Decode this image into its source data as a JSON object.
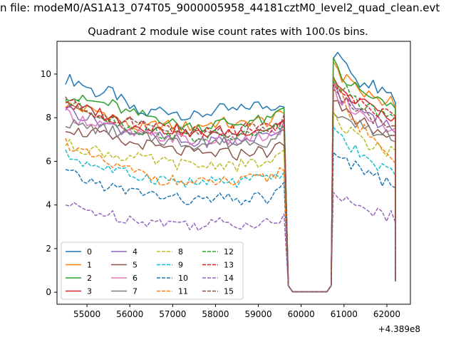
{
  "chart_data": {
    "type": "line",
    "suptitle": "n file: modeM0/AS1A13_074T05_9000005958_44181cztM0_level2_quad_clean.evt",
    "title": "Quadrant 2 module wise count rates with 100.0s bins.",
    "xlabel": "",
    "ylabel": "",
    "x_offset_label": "+4.389e8",
    "x_ticks": [
      55000,
      56000,
      57000,
      58000,
      59000,
      60000,
      61000,
      62000
    ],
    "y_ticks": [
      0,
      2,
      4,
      6,
      8,
      10
    ],
    "xlim": [
      54300,
      62550
    ],
    "ylim": [
      -0.55,
      11.5
    ],
    "grid": false,
    "legend_position": "lower-left",
    "legend_columns": 4,
    "colors": [
      "#1f77b4",
      "#ff7f0e",
      "#2ca02c",
      "#d62728",
      "#9467bd",
      "#8c564b",
      "#e377c2",
      "#7f7f7f",
      "#bcbd22",
      "#17becf",
      "#1f77b4",
      "#ff7f0e",
      "#2ca02c",
      "#d62728",
      "#9467bd",
      "#8c564b"
    ],
    "segments": [
      [
        54500,
        59600
      ],
      [
        60750,
        62200
      ]
    ],
    "gap": {
      "x": [
        59700,
        59800,
        60600,
        60700
      ],
      "y": [
        0.3,
        0.02,
        0.02,
        0.3
      ],
      "end_value": 0.5
    },
    "series": [
      {
        "name": "0",
        "style": "solid",
        "seg1": [
          9.8,
          9.6,
          9.1,
          9.2,
          8.5,
          8.1,
          8.4,
          8.3,
          8.0,
          8.2,
          8.4,
          8.3,
          8.6,
          8.5,
          8.7
        ],
        "seg2": [
          10.8,
          10.6,
          10.0,
          9.7,
          9.6,
          9.3,
          9.0,
          8.9
        ]
      },
      {
        "name": "1",
        "style": "solid",
        "seg1": [
          8.6,
          8.4,
          8.3,
          8.1,
          7.6,
          7.5,
          7.7,
          7.6,
          7.6,
          7.7,
          7.8,
          7.6,
          7.9,
          7.8,
          8.2
        ],
        "seg2": [
          10.4,
          9.8,
          9.6,
          9.3,
          9.0,
          8.9,
          8.8,
          8.7
        ]
      },
      {
        "name": "2",
        "style": "solid",
        "seg1": [
          9.1,
          8.8,
          8.7,
          8.6,
          8.2,
          8.1,
          8.0,
          7.7,
          7.6,
          7.6,
          7.8,
          7.7,
          7.9,
          7.8,
          8.5
        ],
        "seg2": [
          10.7,
          9.9,
          9.5,
          9.2,
          9.0,
          8.8,
          8.6,
          8.6
        ]
      },
      {
        "name": "3",
        "style": "solid",
        "seg1": [
          8.6,
          8.4,
          8.3,
          8.0,
          7.6,
          7.6,
          7.4,
          7.5,
          7.2,
          7.3,
          7.4,
          7.3,
          7.5,
          7.5,
          7.9
        ],
        "seg2": [
          9.8,
          9.2,
          8.9,
          8.7,
          8.5,
          8.3,
          8.2,
          8.0
        ]
      },
      {
        "name": "4",
        "style": "solid",
        "seg1": [
          8.5,
          8.1,
          7.9,
          7.6,
          7.4,
          7.3,
          7.1,
          7.0,
          6.8,
          6.9,
          7.0,
          6.9,
          7.1,
          7.2,
          7.7
        ],
        "seg2": [
          9.6,
          8.9,
          8.5,
          8.3,
          8.0,
          7.8,
          7.7,
          7.5
        ]
      },
      {
        "name": "5",
        "style": "solid",
        "seg1": [
          7.6,
          7.3,
          7.3,
          7.0,
          6.8,
          6.8,
          6.6,
          6.5,
          6.4,
          6.3,
          6.4,
          6.3,
          6.5,
          6.4,
          6.8
        ],
        "seg2": [
          8.9,
          8.3,
          8.0,
          7.8,
          7.6,
          7.4,
          7.2,
          7.0
        ]
      },
      {
        "name": "6",
        "style": "solid",
        "seg1": [
          8.2,
          7.9,
          7.8,
          7.6,
          7.3,
          7.2,
          7.1,
          7.1,
          6.9,
          7.0,
          7.0,
          6.9,
          7.1,
          7.1,
          7.5
        ],
        "seg2": [
          9.4,
          8.8,
          8.5,
          8.2,
          8.0,
          7.8,
          7.6,
          7.4
        ]
      },
      {
        "name": "7",
        "style": "solid",
        "seg1": [
          7.8,
          7.6,
          7.5,
          7.4,
          7.2,
          7.1,
          7.0,
          6.9,
          6.8,
          6.8,
          6.9,
          6.8,
          7.0,
          6.9,
          7.3
        ],
        "seg2": [
          8.4,
          8.0,
          7.8,
          7.6,
          7.4,
          7.3,
          7.2,
          7.1
        ]
      },
      {
        "name": "8",
        "style": "dashed",
        "seg1": [
          6.8,
          6.6,
          6.5,
          6.3,
          6.2,
          6.1,
          6.0,
          5.9,
          5.8,
          5.8,
          5.9,
          5.8,
          5.9,
          5.9,
          6.3
        ],
        "seg2": [
          8.1,
          7.6,
          7.3,
          7.0,
          6.8,
          6.6,
          6.5,
          6.3
        ]
      },
      {
        "name": "9",
        "style": "dashed",
        "seg1": [
          6.3,
          6.0,
          5.8,
          5.6,
          5.4,
          5.3,
          5.2,
          5.1,
          5.0,
          5.0,
          5.1,
          5.0,
          5.2,
          5.1,
          5.6
        ],
        "seg2": [
          7.5,
          6.9,
          6.6,
          6.3,
          6.0,
          5.8,
          5.6,
          5.4
        ]
      },
      {
        "name": "10",
        "style": "dashed",
        "seg1": [
          5.5,
          5.2,
          5.0,
          4.8,
          4.6,
          4.6,
          4.4,
          4.3,
          4.2,
          4.2,
          4.3,
          4.2,
          4.3,
          4.3,
          4.8
        ],
        "seg2": [
          6.6,
          6.2,
          5.9,
          5.6,
          5.4,
          5.2,
          5.0,
          4.9
        ]
      },
      {
        "name": "11",
        "style": "dashed",
        "seg1": [
          6.9,
          6.4,
          6.1,
          5.8,
          5.6,
          5.4,
          5.2,
          5.1,
          5.0,
          5.0,
          5.1,
          5.0,
          5.2,
          5.2,
          5.7
        ],
        "seg2": [
          9.8,
          8.9,
          8.1,
          7.6,
          7.2,
          6.7,
          6.3,
          6.0
        ]
      },
      {
        "name": "12",
        "style": "dashed",
        "seg1": [
          8.8,
          8.5,
          8.2,
          7.9,
          7.6,
          7.4,
          7.3,
          7.2,
          7.1,
          7.1,
          7.2,
          7.1,
          7.3,
          7.3,
          7.8
        ],
        "seg2": [
          9.9,
          9.4,
          9.0,
          8.7,
          8.4,
          8.2,
          8.0,
          7.8
        ]
      },
      {
        "name": "13",
        "style": "dashed",
        "seg1": [
          8.8,
          8.4,
          8.2,
          8.0,
          7.8,
          7.7,
          7.6,
          7.5,
          7.4,
          7.4,
          7.5,
          7.4,
          7.6,
          7.5,
          7.9
        ],
        "seg2": [
          9.4,
          9.2,
          9.0,
          8.7,
          8.5,
          8.3,
          8.1,
          7.9
        ]
      },
      {
        "name": "14",
        "style": "dashed",
        "seg1": [
          4.0,
          3.8,
          3.7,
          3.5,
          3.4,
          3.3,
          3.2,
          3.2,
          3.1,
          3.1,
          3.2,
          3.1,
          3.2,
          3.2,
          3.4
        ],
        "seg2": [
          4.7,
          4.3,
          4.1,
          3.9,
          3.7,
          3.6,
          3.5,
          3.4
        ]
      },
      {
        "name": "15",
        "style": "dashed",
        "seg1": [
          8.9,
          8.5,
          8.3,
          8.0,
          7.8,
          7.6,
          7.5,
          7.4,
          7.3,
          7.3,
          7.4,
          7.3,
          7.5,
          7.4,
          8.0
        ],
        "seg2": [
          9.2,
          8.9,
          8.6,
          8.3,
          8.1,
          7.9,
          7.7,
          7.5
        ]
      }
    ]
  }
}
